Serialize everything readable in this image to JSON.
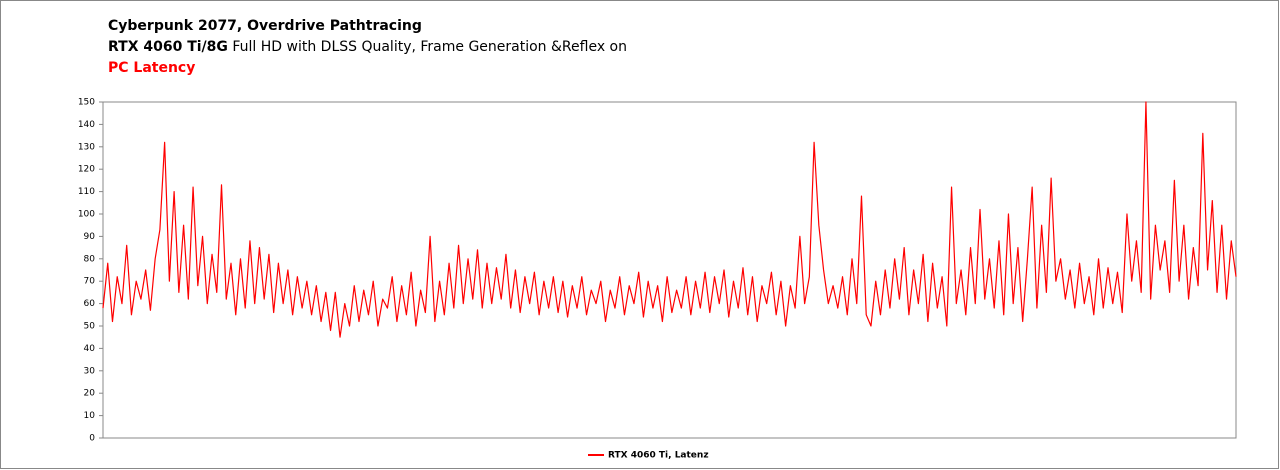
{
  "chart_data": {
    "type": "line",
    "title": "Cyberpunk 2077, Overdrive Pathtracing",
    "subtitle_bold": "RTX 4060 Ti/8G",
    "subtitle": "Full HD with DLSS Quality, Frame Generation &Reflex on",
    "metric": "PC Latency",
    "ylim": [
      0,
      150
    ],
    "yticks": [
      0,
      10,
      20,
      30,
      40,
      50,
      60,
      70,
      80,
      90,
      100,
      110,
      120,
      130,
      140,
      150
    ],
    "grid": false,
    "legend": "bottom",
    "series": [
      {
        "name": "RTX 4060 Ti, Latenz",
        "color": "#ff0000",
        "values": [
          58,
          78,
          52,
          72,
          60,
          86,
          55,
          70,
          62,
          75,
          57,
          80,
          93,
          132,
          70,
          110,
          65,
          95,
          62,
          112,
          68,
          90,
          60,
          82,
          65,
          113,
          62,
          78,
          55,
          80,
          58,
          88,
          60,
          85,
          62,
          82,
          56,
          78,
          60,
          75,
          55,
          72,
          58,
          70,
          55,
          68,
          52,
          65,
          48,
          65,
          45,
          60,
          50,
          68,
          52,
          66,
          55,
          70,
          50,
          62,
          58,
          72,
          52,
          68,
          55,
          74,
          50,
          66,
          56,
          90,
          52,
          70,
          55,
          78,
          58,
          86,
          60,
          80,
          62,
          84,
          58,
          78,
          60,
          76,
          62,
          82,
          58,
          75,
          56,
          72,
          60,
          74,
          55,
          70,
          58,
          72,
          56,
          70,
          54,
          68,
          58,
          72,
          55,
          66,
          60,
          70,
          52,
          66,
          58,
          72,
          55,
          68,
          60,
          74,
          54,
          70,
          58,
          68,
          52,
          72,
          56,
          66,
          58,
          72,
          55,
          70,
          58,
          74,
          56,
          72,
          60,
          75,
          54,
          70,
          58,
          76,
          55,
          72,
          52,
          68,
          60,
          74,
          55,
          70,
          50,
          68,
          58,
          90,
          60,
          72,
          132,
          95,
          75,
          60,
          68,
          58,
          72,
          55,
          80,
          60,
          108,
          55,
          50,
          70,
          55,
          75,
          58,
          80,
          62,
          85,
          55,
          75,
          60,
          82,
          52,
          78,
          58,
          72,
          50,
          112,
          60,
          75,
          55,
          85,
          60,
          102,
          62,
          80,
          58,
          88,
          55,
          100,
          60,
          85,
          52,
          80,
          112,
          58,
          95,
          65,
          116,
          70,
          80,
          62,
          75,
          58,
          78,
          60,
          72,
          55,
          80,
          58,
          76,
          60,
          74,
          56,
          100,
          70,
          88,
          65,
          150,
          62,
          95,
          75,
          88,
          65,
          115,
          70,
          95,
          62,
          85,
          68,
          136,
          75,
          106,
          65,
          95,
          62,
          88,
          72
        ]
      }
    ]
  }
}
